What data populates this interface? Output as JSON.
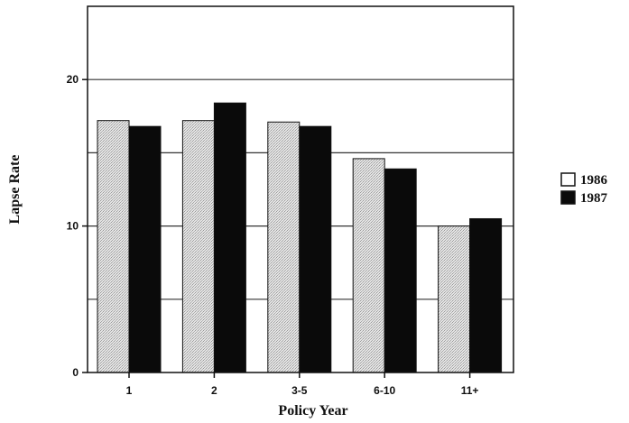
{
  "chart_data": {
    "type": "bar",
    "title": "",
    "xlabel": "Policy Year",
    "ylabel": "Lapse Rate",
    "categories": [
      "1",
      "2",
      "3-5",
      "6-10",
      "11+"
    ],
    "series": [
      {
        "name": "1986",
        "values": [
          17.2,
          17.2,
          17.1,
          14.6,
          10.0
        ],
        "color": "#d4d4d4"
      },
      {
        "name": "1987",
        "values": [
          16.8,
          18.4,
          16.8,
          13.9,
          10.5
        ],
        "color": "#0a0a0a"
      }
    ],
    "ylim": [
      0,
      25
    ],
    "yticks": [
      0,
      10,
      20
    ],
    "gridlines": [
      5,
      10,
      15,
      20
    ],
    "grid": true,
    "legend_position": "right"
  }
}
